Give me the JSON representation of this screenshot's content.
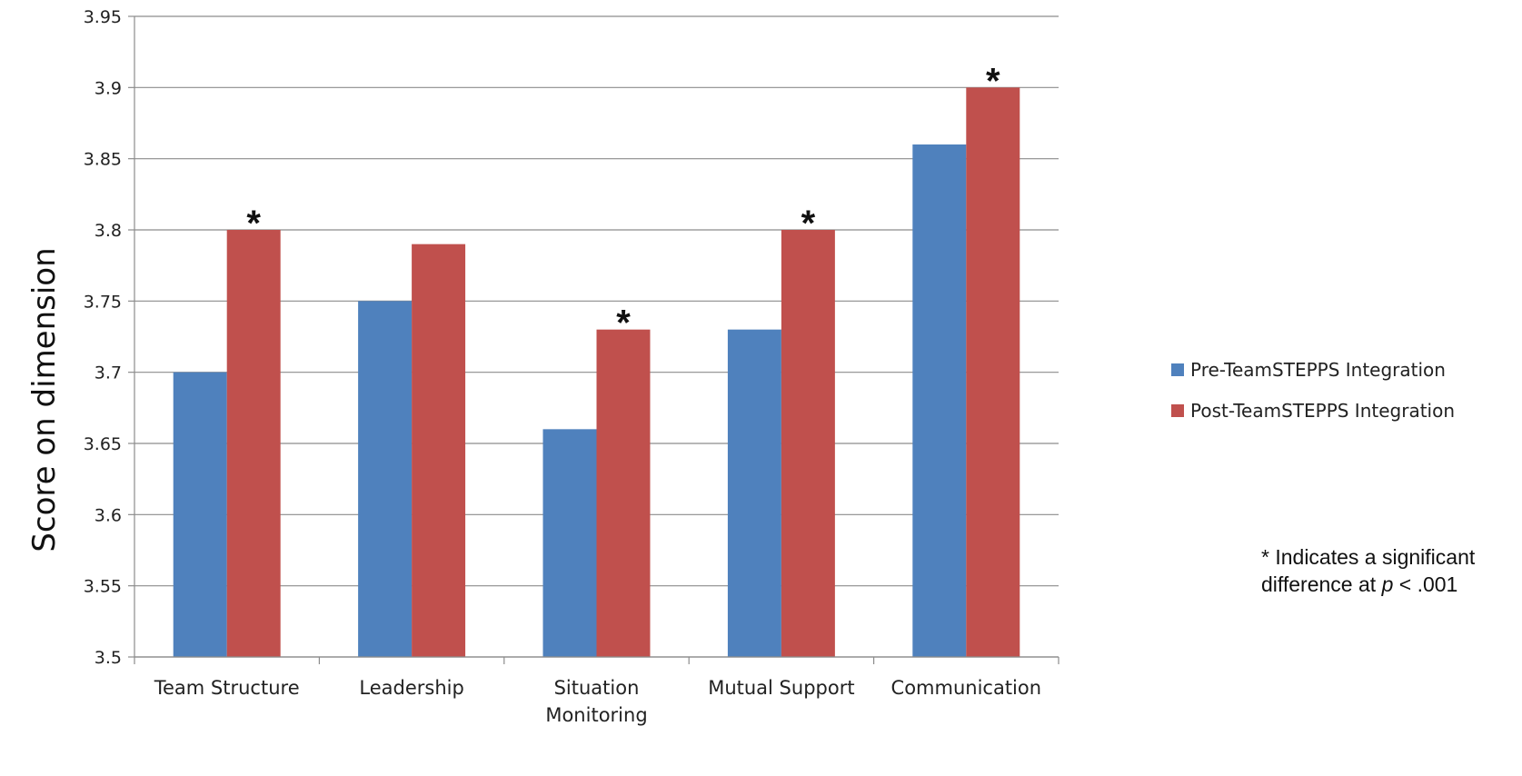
{
  "chart_data": {
    "type": "bar",
    "title": "",
    "xlabel": "",
    "ylabel": "Score on dimension",
    "ylim": [
      3.5,
      3.95
    ],
    "yticks": [
      "3.5",
      "3.55",
      "3.6",
      "3.65",
      "3.7",
      "3.75",
      "3.8",
      "3.85",
      "3.9",
      "3.95"
    ],
    "categories": [
      [
        "Team Structure"
      ],
      [
        "Leadership"
      ],
      [
        "Situation",
        "Monitoring"
      ],
      [
        "Mutual Support"
      ],
      [
        "Communication"
      ]
    ],
    "series": [
      {
        "name": "Pre-TeamSTEPPS Integration",
        "color": "#4F81BD",
        "values": [
          3.7,
          3.75,
          3.66,
          3.73,
          3.86
        ]
      },
      {
        "name": "Post-TeamSTEPPS Integration",
        "color": "#C0504D",
        "values": [
          3.8,
          3.79,
          3.73,
          3.8,
          3.9
        ]
      }
    ],
    "significance_marker": "*",
    "significant": [
      true,
      false,
      true,
      true,
      true
    ],
    "grid": true,
    "legend_position": "right"
  },
  "note": {
    "line1": "* Indicates a significant",
    "line2_prefix": "difference at ",
    "line2_italic": "p",
    "line2_suffix": " < .001"
  }
}
